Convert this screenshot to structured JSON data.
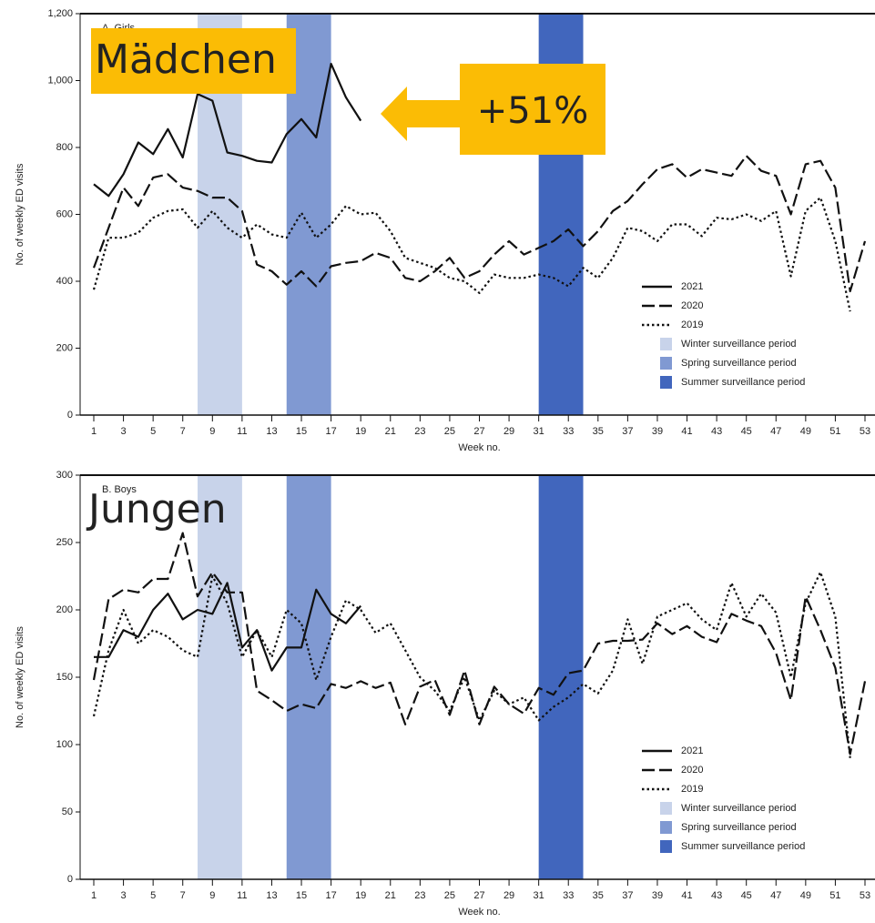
{
  "chart_data": [
    {
      "type": "line",
      "panel_label": "A. Girls",
      "overlay_label": "Mädchen",
      "change_annotation": "+51%",
      "x_label": "Week no.",
      "y_label": "No. of weekly ED visits",
      "x": [
        1,
        2,
        3,
        4,
        5,
        6,
        7,
        8,
        9,
        10,
        11,
        12,
        13,
        14,
        15,
        16,
        17,
        18,
        19,
        20,
        21,
        22,
        23,
        24,
        25,
        26,
        27,
        28,
        29,
        30,
        31,
        32,
        33,
        34,
        35,
        36,
        37,
        38,
        39,
        40,
        41,
        42,
        43,
        44,
        45,
        46,
        47,
        48,
        49,
        50,
        51,
        52,
        53
      ],
      "xlim": [
        1,
        53
      ],
      "xticks": [
        1,
        3,
        5,
        7,
        9,
        11,
        13,
        15,
        17,
        19,
        21,
        23,
        25,
        27,
        29,
        31,
        33,
        35,
        37,
        39,
        41,
        43,
        45,
        47,
        49,
        51,
        53
      ],
      "ylim": [
        0,
        1200
      ],
      "yticks": [
        0,
        200,
        400,
        600,
        800,
        {
          "value": 1000,
          "label": "1,000"
        },
        {
          "value": 1200,
          "label": "1,200"
        }
      ],
      "legend": "lower right",
      "series": [
        {
          "name": "2021",
          "color": "#111111",
          "dash": "solid",
          "values": [
            690,
            655,
            720,
            815,
            780,
            855,
            770,
            960,
            940,
            785,
            775,
            760,
            755,
            840,
            885,
            830,
            1050,
            950,
            880,
            null,
            null,
            null,
            null,
            null,
            null,
            null,
            null,
            null,
            null,
            null,
            null,
            null,
            null,
            null,
            null,
            null,
            null,
            null,
            null,
            null,
            null,
            null,
            null,
            null,
            null,
            null,
            null,
            null,
            null,
            null,
            null,
            null,
            null
          ]
        },
        {
          "name": "2020",
          "color": "#111111",
          "dash": "dashed",
          "values": [
            440,
            560,
            680,
            625,
            710,
            720,
            680,
            670,
            650,
            650,
            610,
            450,
            430,
            390,
            430,
            385,
            445,
            455,
            460,
            485,
            470,
            410,
            400,
            430,
            470,
            410,
            430,
            480,
            520,
            480,
            500,
            520,
            555,
            505,
            550,
            610,
            640,
            690,
            735,
            750,
            710,
            735,
            725,
            715,
            775,
            730,
            715,
            600,
            750,
            760,
            680,
            370,
            520
          ]
        },
        {
          "name": "2019",
          "color": "#111111",
          "dash": "dotted",
          "values": [
            375,
            530,
            530,
            545,
            590,
            610,
            615,
            560,
            610,
            560,
            530,
            570,
            540,
            530,
            605,
            530,
            570,
            625,
            600,
            605,
            550,
            470,
            455,
            440,
            410,
            400,
            365,
            420,
            410,
            410,
            420,
            410,
            385,
            440,
            410,
            470,
            560,
            550,
            520,
            570,
            570,
            535,
            590,
            585,
            600,
            580,
            610,
            415,
            610,
            650,
            520,
            310,
            null
          ]
        }
      ],
      "bands": [
        {
          "name": "Winter surveillance period",
          "from": 8,
          "to": 11,
          "color": "#c8d3ea"
        },
        {
          "name": "Spring surveillance period",
          "from": 14,
          "to": 17,
          "color": "#8099d2"
        },
        {
          "name": "Summer surveillance period",
          "from": 31,
          "to": 34,
          "color": "#4166bd"
        }
      ]
    },
    {
      "type": "line",
      "panel_label": "B. Boys",
      "overlay_label": "Jungen",
      "x_label": "Week no.",
      "y_label": "No. of weekly ED visits",
      "x": [
        1,
        2,
        3,
        4,
        5,
        6,
        7,
        8,
        9,
        10,
        11,
        12,
        13,
        14,
        15,
        16,
        17,
        18,
        19,
        20,
        21,
        22,
        23,
        24,
        25,
        26,
        27,
        28,
        29,
        30,
        31,
        32,
        33,
        34,
        35,
        36,
        37,
        38,
        39,
        40,
        41,
        42,
        43,
        44,
        45,
        46,
        47,
        48,
        49,
        50,
        51,
        52,
        53
      ],
      "xlim": [
        1,
        53
      ],
      "xticks": [
        1,
        3,
        5,
        7,
        9,
        11,
        13,
        15,
        17,
        19,
        21,
        23,
        25,
        27,
        29,
        31,
        33,
        35,
        37,
        39,
        41,
        43,
        45,
        47,
        49,
        51,
        53
      ],
      "ylim": [
        0,
        300
      ],
      "yticks": [
        0,
        50,
        100,
        150,
        200,
        250,
        300
      ],
      "legend": "lower right",
      "series": [
        {
          "name": "2021",
          "color": "#111111",
          "dash": "solid",
          "values": [
            165,
            165,
            185,
            180,
            200,
            212,
            193,
            200,
            197,
            220,
            172,
            185,
            155,
            172,
            172,
            215,
            197,
            190,
            203,
            null,
            null,
            null,
            null,
            null,
            null,
            null,
            null,
            null,
            null,
            null,
            null,
            null,
            null,
            null,
            null,
            null,
            null,
            null,
            null,
            null,
            null,
            null,
            null,
            null,
            null,
            null,
            null,
            null,
            null,
            null,
            null,
            null,
            null
          ]
        },
        {
          "name": "2020",
          "color": "#111111",
          "dash": "dashed",
          "values": [
            148,
            208,
            215,
            213,
            223,
            223,
            257,
            210,
            228,
            213,
            213,
            140,
            133,
            125,
            130,
            127,
            145,
            142,
            147,
            142,
            146,
            115,
            143,
            148,
            122,
            155,
            115,
            143,
            130,
            123,
            142,
            137,
            153,
            155,
            175,
            177,
            177,
            178,
            190,
            182,
            188,
            180,
            176,
            197,
            192,
            188,
            168,
            133,
            210,
            185,
            157,
            93,
            147
          ]
        },
        {
          "name": "2019",
          "color": "#111111",
          "dash": "dotted",
          "values": [
            121,
            170,
            200,
            175,
            185,
            180,
            170,
            165,
            225,
            205,
            165,
            185,
            165,
            200,
            190,
            148,
            180,
            207,
            200,
            183,
            190,
            170,
            150,
            140,
            125,
            150,
            118,
            140,
            130,
            135,
            118,
            128,
            135,
            145,
            138,
            155,
            193,
            160,
            195,
            200,
            205,
            193,
            185,
            220,
            195,
            212,
            198,
            150,
            205,
            228,
            195,
            90,
            null
          ]
        }
      ],
      "bands": [
        {
          "name": "Winter surveillance period",
          "from": 8,
          "to": 11,
          "color": "#c8d3ea"
        },
        {
          "name": "Spring surveillance period",
          "from": 14,
          "to": 17,
          "color": "#8099d2"
        },
        {
          "name": "Summer surveillance period",
          "from": 31,
          "to": 34,
          "color": "#4166bd"
        }
      ]
    }
  ]
}
